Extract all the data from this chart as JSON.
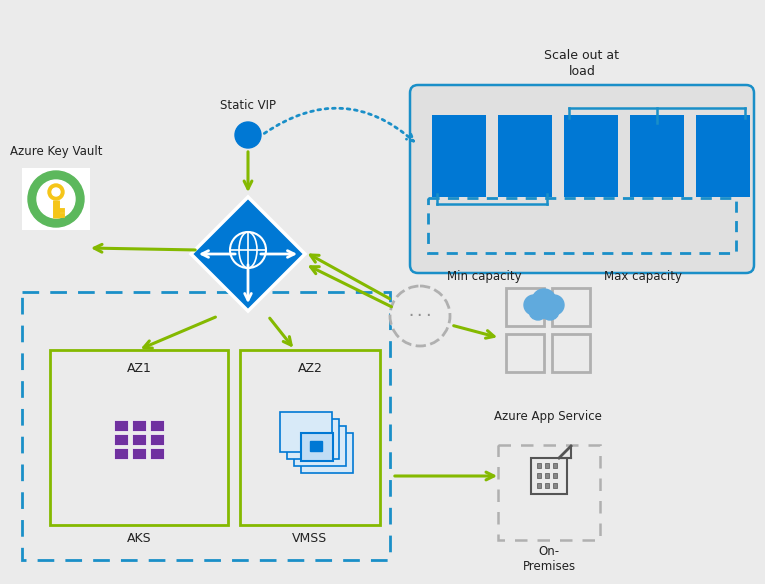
{
  "bg_color": "#ebebeb",
  "blue": "#1a8fc8",
  "dark_blue": "#0078d4",
  "green": "#84b900",
  "gray": "#909090",
  "light_gray": "#b0b0b0",
  "dashed_gray": "#a0a0a0",
  "white": "#ffffff",
  "tc": "#222222",
  "purple": "#7030a0",
  "scale_title": "Scale out at\nload",
  "lbl_static_vip": "Static VIP",
  "lbl_azure_key_vault": "Azure Key Vault",
  "lbl_az1": "AZ1",
  "lbl_az2": "AZ2",
  "lbl_aks": "AKS",
  "lbl_vmss": "VMSS",
  "lbl_azure_app_service": "Azure App Service",
  "lbl_on_premises": "On-\nPremises",
  "lbl_min_capacity": "Min capacity",
  "lbl_max_capacity": "Max capacity",
  "figw": 7.65,
  "figh": 5.84
}
